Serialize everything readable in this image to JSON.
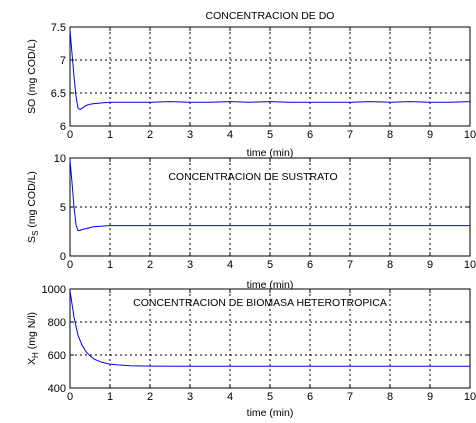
{
  "chart_data": [
    {
      "type": "line",
      "title": "CONCENTRACION DE DO",
      "xlabel": "time (min)",
      "ylabel": "SO (mg COD/L)",
      "xlim": [
        0,
        10
      ],
      "ylim": [
        6,
        7.5
      ],
      "xticks": [
        "0",
        "1",
        "2",
        "3",
        "4",
        "5",
        "6",
        "7",
        "8",
        "9",
        "10"
      ],
      "yticks": [
        "6",
        "6.5",
        "7",
        "7.5"
      ],
      "grid": true,
      "line_color": "#0000ff",
      "x": [
        0,
        0.05,
        0.1,
        0.15,
        0.2,
        0.25,
        0.3,
        0.35,
        0.4,
        0.5,
        0.6,
        0.8,
        1.0,
        1.5,
        2,
        2.5,
        3,
        3.5,
        4,
        4.5,
        5,
        5.5,
        6,
        6.5,
        7,
        7.5,
        8,
        8.5,
        9,
        9.5,
        10
      ],
      "y": [
        7.45,
        7.1,
        6.75,
        6.45,
        6.27,
        6.25,
        6.27,
        6.29,
        6.31,
        6.33,
        6.34,
        6.35,
        6.36,
        6.36,
        6.36,
        6.37,
        6.36,
        6.36,
        6.37,
        6.36,
        6.37,
        6.36,
        6.36,
        6.36,
        6.36,
        6.37,
        6.36,
        6.37,
        6.36,
        6.36,
        6.37
      ]
    },
    {
      "type": "line",
      "title": "CONCENTRACION DE SUSTRATO",
      "xlabel": "time (min)",
      "ylabel": "S",
      "ylabel_sub": "S",
      "ylabel_rest": " (mg COD/L)",
      "xlim": [
        0,
        10
      ],
      "ylim": [
        0,
        10
      ],
      "xticks": [
        "0",
        "1",
        "2",
        "3",
        "4",
        "5",
        "6",
        "7",
        "8",
        "9",
        "10"
      ],
      "yticks": [
        "0",
        "5",
        "10"
      ],
      "grid": true,
      "line_color": "#0000ff",
      "x": [
        0,
        0.05,
        0.1,
        0.15,
        0.2,
        0.25,
        0.3,
        0.4,
        0.5,
        0.6,
        0.8,
        1.0,
        2,
        3,
        4,
        5,
        6,
        7,
        8,
        9,
        10
      ],
      "y": [
        9.8,
        7.5,
        5.0,
        3.2,
        2.6,
        2.6,
        2.7,
        2.8,
        2.9,
        3.0,
        3.05,
        3.1,
        3.1,
        3.1,
        3.1,
        3.1,
        3.1,
        3.1,
        3.1,
        3.1,
        3.1
      ]
    },
    {
      "type": "line",
      "title": "CONCENTRACION DE BIOMASA HETEROTROPICA",
      "xlabel": "time (min)",
      "ylabel": "X",
      "ylabel_sub": "H",
      "ylabel_rest": " (mg N/l)",
      "xlim": [
        0,
        10
      ],
      "ylim": [
        400,
        1000
      ],
      "xticks": [
        "0",
        "1",
        "2",
        "3",
        "4",
        "5",
        "6",
        "7",
        "8",
        "9",
        "10"
      ],
      "yticks": [
        "400",
        "600",
        "800",
        "1000"
      ],
      "grid": true,
      "line_color": "#0000ff",
      "x": [
        0,
        0.1,
        0.2,
        0.3,
        0.4,
        0.5,
        0.6,
        0.8,
        1.0,
        1.2,
        1.5,
        2,
        3,
        4,
        5,
        6,
        7,
        8,
        9,
        10
      ],
      "y": [
        990,
        830,
        720,
        660,
        620,
        595,
        575,
        555,
        545,
        540,
        535,
        533,
        532,
        532,
        532,
        532,
        532,
        532,
        532,
        532
      ]
    }
  ]
}
